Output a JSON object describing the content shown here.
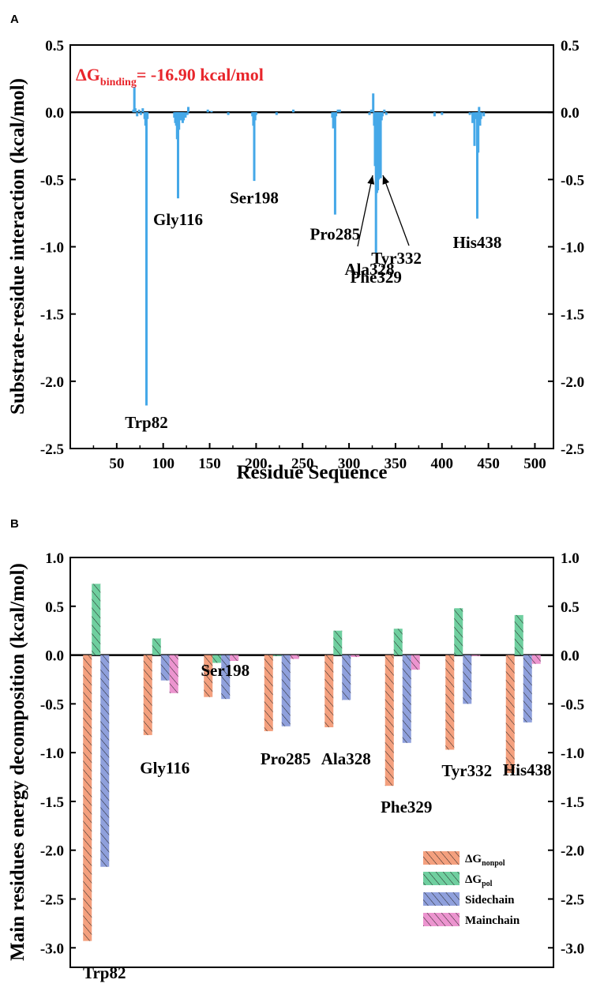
{
  "chart_data": [
    {
      "panel": "A",
      "type": "bar",
      "title": "",
      "annotation": {
        "delta": "ΔG",
        "sub": "binding",
        "value": "= -16.90 kcal/mol"
      },
      "xlabel": "Residue Sequence",
      "ylabel": "Substrate-residue interaction (kcal/mol)",
      "xlim": [
        0,
        520
      ],
      "ylim": [
        -2.5,
        0.5
      ],
      "xticks": [
        "50",
        "100",
        "150",
        "200",
        "250",
        "300",
        "350",
        "400",
        "450",
        "500"
      ],
      "yticks": [
        "0.5",
        "0.0",
        "-0.5",
        "-1.0",
        "-1.5",
        "-2.0",
        "-2.5"
      ],
      "color": "#45a8e8",
      "x": [
        68,
        69,
        70,
        72,
        74,
        76,
        78,
        80,
        81,
        82,
        83,
        112,
        113,
        114,
        115,
        116,
        117,
        118,
        119,
        120,
        121,
        122,
        124,
        126,
        127,
        148,
        152,
        170,
        196,
        197,
        198,
        199,
        200,
        222,
        240,
        282,
        283,
        284,
        285,
        286,
        288,
        290,
        322,
        324,
        326,
        327,
        328,
        329,
        330,
        331,
        332,
        333,
        334,
        335,
        336,
        338,
        340,
        392,
        400,
        430,
        433,
        435,
        436,
        437,
        438,
        439,
        440,
        441,
        442,
        445
      ],
      "values": [
        0.02,
        0.19,
        0.03,
        -0.03,
        0.02,
        -0.02,
        0.03,
        -0.05,
        -0.1,
        -2.18,
        -0.05,
        -0.04,
        -0.08,
        -0.1,
        -0.2,
        -0.64,
        -0.13,
        -0.03,
        -0.06,
        -0.03,
        -0.08,
        -0.06,
        -0.04,
        -0.02,
        0.04,
        0.02,
        0.01,
        -0.02,
        -0.03,
        -0.1,
        -0.51,
        -0.06,
        -0.02,
        -0.02,
        0.02,
        -0.04,
        -0.12,
        -0.05,
        -0.76,
        -0.03,
        0.02,
        0.02,
        -0.02,
        0.02,
        0.14,
        -0.1,
        -0.4,
        -1.05,
        -0.6,
        -0.58,
        -0.5,
        -0.35,
        -0.49,
        -0.06,
        -0.03,
        0.02,
        -0.02,
        -0.03,
        -0.02,
        -0.02,
        -0.08,
        -0.25,
        -0.05,
        -0.05,
        -0.79,
        -0.3,
        0.04,
        -0.1,
        -0.05,
        -0.03
      ],
      "labels": [
        {
          "text": "Trp82",
          "x": 82,
          "y": -2.23
        },
        {
          "text": "Gly116",
          "x": 116,
          "y": -0.72
        },
        {
          "text": "Ser198",
          "x": 198,
          "y": -0.56
        },
        {
          "text": "Pro285",
          "x": 285,
          "y": -0.83
        },
        {
          "text": "Ala328",
          "x": 322,
          "y": -1.09
        },
        {
          "text": "Phe329",
          "x": 329,
          "y": -1.15
        },
        {
          "text": "Tyr332",
          "x": 351,
          "y": -1.01
        },
        {
          "text": "His438",
          "x": 438,
          "y": -0.89
        }
      ]
    },
    {
      "panel": "B",
      "type": "bar",
      "title": "",
      "xlabel": "",
      "ylabel": "Main residues energy decomposition (kcal/mol)",
      "ylim": [
        -3.2,
        1.0
      ],
      "yticks": [
        "1.0",
        "0.5",
        "0.0",
        "-0.5",
        "-1.0",
        "-1.5",
        "-2.0",
        "-2.5",
        "-3.0"
      ],
      "categories": [
        "Trp82",
        "Gly116",
        "Ser198",
        "Pro285",
        "Ala328",
        "Phe329",
        "Tyr332",
        "His438"
      ],
      "category_label_y": [
        -3.15,
        -1.05,
        -0.05,
        -0.96,
        -0.96,
        -1.45,
        -1.08,
        -1.07
      ],
      "series": [
        {
          "name": "nonpol",
          "values": [
            -2.93,
            -0.82,
            -0.43,
            -0.78,
            -0.74,
            -1.34,
            -0.97,
            -1.21
          ],
          "color": "#f4a07e"
        },
        {
          "name": "pol",
          "values": [
            0.73,
            0.17,
            -0.08,
            -0.01,
            0.25,
            0.27,
            0.48,
            0.41
          ],
          "color": "#6fcf9f"
        },
        {
          "name": "Sidechain",
          "values": [
            -2.17,
            -0.26,
            -0.45,
            -0.73,
            -0.46,
            -0.9,
            -0.5,
            -0.69
          ],
          "color": "#8fa0dc"
        },
        {
          "name": "Mainchain",
          "values": [
            0.0,
            -0.39,
            -0.06,
            -0.04,
            -0.02,
            -0.15,
            -0.01,
            -0.09
          ],
          "color": "#ec94cf"
        }
      ],
      "legend": {
        "position": "bottom-right",
        "entries": [
          {
            "main": "ΔG",
            "sub": "nonpol"
          },
          {
            "main": "ΔG",
            "sub": "pol"
          },
          {
            "main": "Sidechain",
            "sub": ""
          },
          {
            "main": "Mainchain",
            "sub": ""
          }
        ]
      }
    }
  ]
}
